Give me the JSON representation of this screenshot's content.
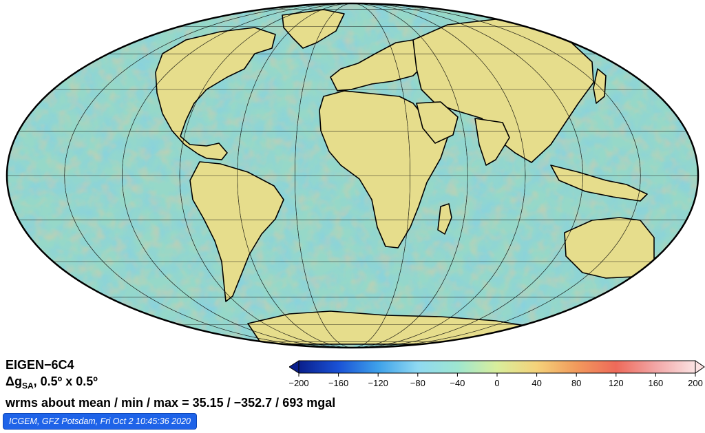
{
  "info": {
    "model": "EIGEN−6C4",
    "quantity_symbol": "Δg",
    "quantity_subscript": "SA",
    "resolution": ", 0.5º x 0.5º",
    "stats": "wrms about mean / min / max = 35.15 / −352.7 / 693 mgal"
  },
  "credit": "ICGEM, GFZ Potsdam, Fri Oct 2 10:45:36 2020",
  "colorbar": {
    "ticks": [
      "−200",
      "−160",
      "−120",
      "−80",
      "−40",
      "0",
      "40",
      "80",
      "120",
      "160",
      "200"
    ],
    "range": [
      -200,
      200
    ],
    "colors": [
      "#0a1f8c",
      "#1a52d6",
      "#3ea1ea",
      "#8fd9f2",
      "#9ee6d0",
      "#d9ee9c",
      "#f4d27a",
      "#f29a5c",
      "#ee6a5a",
      "#f2a6a6",
      "#fbe3e3"
    ]
  },
  "map": {
    "projection": "mollweide",
    "ocean_color": "#96d8c8",
    "land_color": "#e6dd8c",
    "coastline_color": "#000000"
  }
}
